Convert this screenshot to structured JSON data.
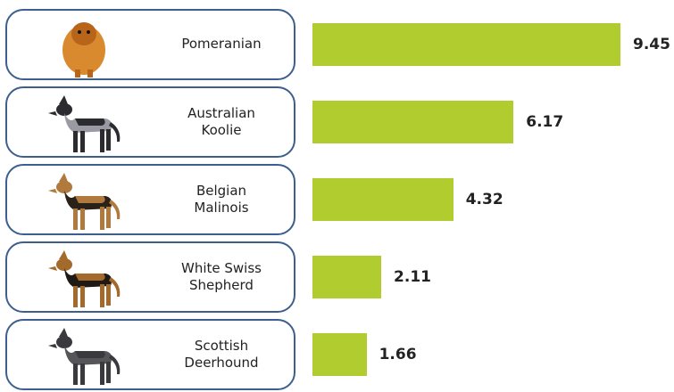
{
  "chart_data": {
    "type": "bar",
    "orientation": "horizontal",
    "categories": [
      "Pomeranian",
      "Australian Koolie",
      "Belgian Malinois",
      "White Swiss Shepherd",
      "Scottish Deerhound"
    ],
    "values": [
      9.45,
      6.17,
      4.32,
      2.11,
      1.66
    ],
    "color": "#b1cc2e"
  }
}
